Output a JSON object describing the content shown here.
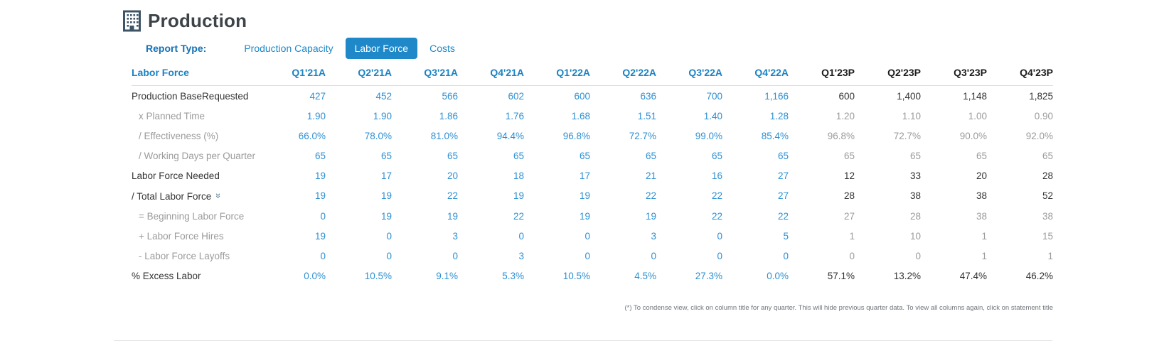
{
  "header": {
    "title": "Production",
    "report_type_label": "Report Type:",
    "tabs": [
      {
        "label": "Production Capacity",
        "selected": false
      },
      {
        "label": "Labor Force",
        "selected": true
      },
      {
        "label": "Costs",
        "selected": false
      }
    ]
  },
  "table": {
    "title": "Labor Force",
    "columns": [
      {
        "label": "Q1'21A",
        "type": "actual"
      },
      {
        "label": "Q2'21A",
        "type": "actual"
      },
      {
        "label": "Q3'21A",
        "type": "actual"
      },
      {
        "label": "Q4'21A",
        "type": "actual"
      },
      {
        "label": "Q1'22A",
        "type": "actual"
      },
      {
        "label": "Q2'22A",
        "type": "actual"
      },
      {
        "label": "Q3'22A",
        "type": "actual"
      },
      {
        "label": "Q4'22A",
        "type": "actual"
      },
      {
        "label": "Q1'23P",
        "type": "projected"
      },
      {
        "label": "Q2'23P",
        "type": "projected"
      },
      {
        "label": "Q3'23P",
        "type": "projected"
      },
      {
        "label": "Q4'23P",
        "type": "projected"
      }
    ],
    "rows": [
      {
        "label": "Production BaseRequested",
        "style": "main",
        "values": [
          "427",
          "452",
          "566",
          "602",
          "600",
          "636",
          "700",
          "1,166",
          "600",
          "1,400",
          "1,148",
          "1,825"
        ]
      },
      {
        "label": "x Planned Time",
        "style": "sub",
        "values": [
          "1.90",
          "1.90",
          "1.86",
          "1.76",
          "1.68",
          "1.51",
          "1.40",
          "1.28",
          "1.20",
          "1.10",
          "1.00",
          "0.90"
        ]
      },
      {
        "label": "/ Effectiveness (%)",
        "style": "sub",
        "values": [
          "66.0%",
          "78.0%",
          "81.0%",
          "94.4%",
          "96.8%",
          "72.7%",
          "99.0%",
          "85.4%",
          "96.8%",
          "72.7%",
          "90.0%",
          "92.0%"
        ]
      },
      {
        "label": "/ Working Days per Quarter",
        "style": "sub",
        "values": [
          "65",
          "65",
          "65",
          "65",
          "65",
          "65",
          "65",
          "65",
          "65",
          "65",
          "65",
          "65"
        ]
      },
      {
        "label": "Labor Force Needed",
        "style": "main",
        "values": [
          "19",
          "17",
          "20",
          "18",
          "17",
          "21",
          "16",
          "27",
          "12",
          "33",
          "20",
          "28"
        ]
      },
      {
        "label": "/ Total Labor Force",
        "style": "main",
        "icon": "chevron-double-down",
        "values": [
          "19",
          "19",
          "22",
          "19",
          "19",
          "22",
          "22",
          "27",
          "28",
          "38",
          "38",
          "52"
        ]
      },
      {
        "label": "= Beginning Labor Force",
        "style": "sub",
        "values": [
          "0",
          "19",
          "19",
          "22",
          "19",
          "19",
          "22",
          "22",
          "27",
          "28",
          "38",
          "38"
        ]
      },
      {
        "label": "+ Labor Force Hires",
        "style": "sub",
        "values": [
          "19",
          "0",
          "3",
          "0",
          "0",
          "3",
          "0",
          "5",
          "1",
          "10",
          "1",
          "15"
        ]
      },
      {
        "label": "- Labor Force Layoffs",
        "style": "sub",
        "values": [
          "0",
          "0",
          "0",
          "3",
          "0",
          "0",
          "0",
          "0",
          "0",
          "0",
          "1",
          "1"
        ]
      },
      {
        "label": "% Excess Labor",
        "style": "main",
        "values": [
          "0.0%",
          "10.5%",
          "9.1%",
          "5.3%",
          "10.5%",
          "4.5%",
          "27.3%",
          "0.0%",
          "57.1%",
          "13.2%",
          "47.4%",
          "46.2%"
        ]
      }
    ]
  },
  "icons": {
    "chevron-double-down": "»"
  },
  "footnote": "(*) To condense view, click on column title for any quarter. This will hide previous quarter data. To view all columns again, click on statement title",
  "colors": {
    "accent_blue": "#1e88c9",
    "selected_tab_bg": "#1e88c9",
    "header_actual_blue": "#1a82c4",
    "header_projected_black": "#1c1c1c",
    "value_blue": "#2d90d3",
    "muted_gray": "#9b9b9b",
    "dark_text": "#333333",
    "title_text": "#3d4449"
  }
}
